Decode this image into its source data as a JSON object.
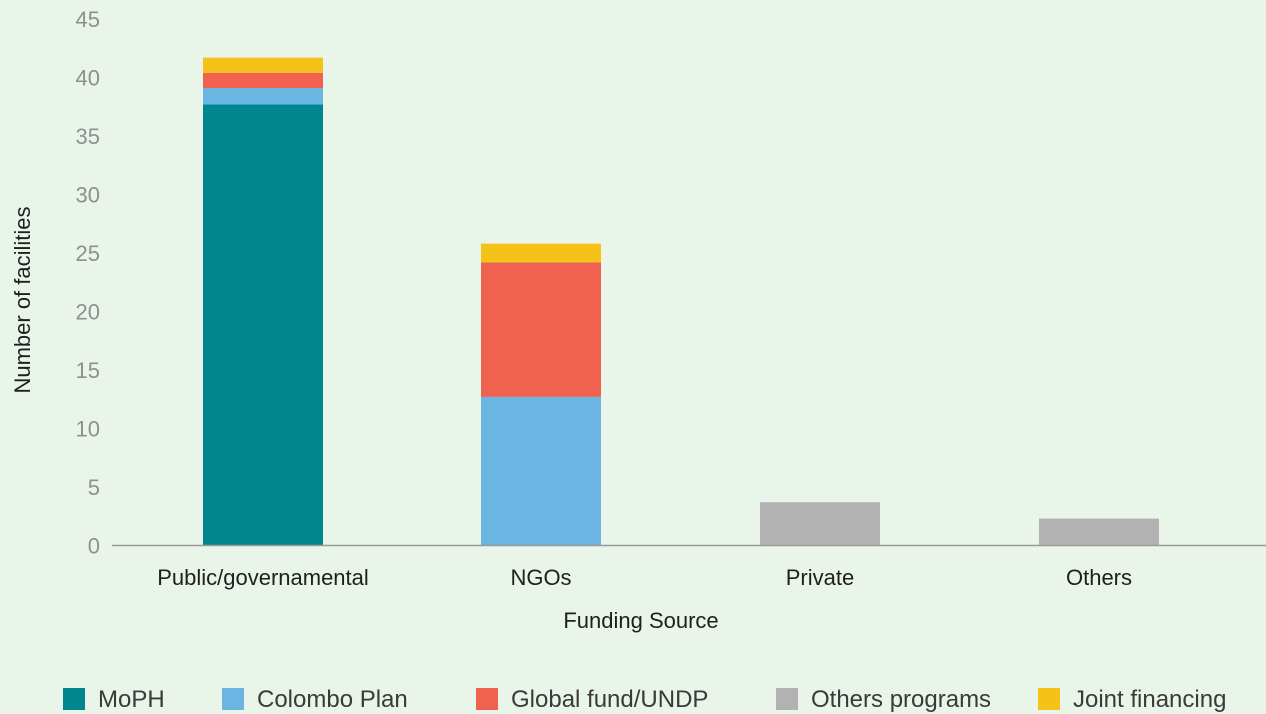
{
  "chart_data": {
    "type": "bar",
    "stacked": true,
    "categories": [
      "Public/governamental",
      "NGOs",
      "Private",
      "Others"
    ],
    "series": [
      {
        "name": "MoPH",
        "color": "#00868f",
        "values": [
          37.7,
          0,
          0,
          0
        ]
      },
      {
        "name": "Colombo Plan",
        "color": "#6ab5e2",
        "values": [
          1.4,
          12.7,
          0,
          0
        ]
      },
      {
        "name": "Global fund/UNDP",
        "color": "#f06150",
        "values": [
          1.3,
          11.5,
          0,
          0
        ]
      },
      {
        "name": "Others programs",
        "color": "#b2b2b2",
        "values": [
          0,
          0,
          3.7,
          2.3
        ]
      },
      {
        "name": "Joint financing",
        "color": "#f5c218",
        "values": [
          1.3,
          1.6,
          0,
          0
        ]
      }
    ],
    "xlabel": "Funding Source",
    "ylabel": "Number of facilities",
    "ylim": [
      0,
      45
    ],
    "yticks": [
      "0",
      "5",
      "10",
      "15",
      "20",
      "25",
      "30",
      "35",
      "40",
      "45"
    ],
    "grid": false,
    "legend": "bottom"
  }
}
